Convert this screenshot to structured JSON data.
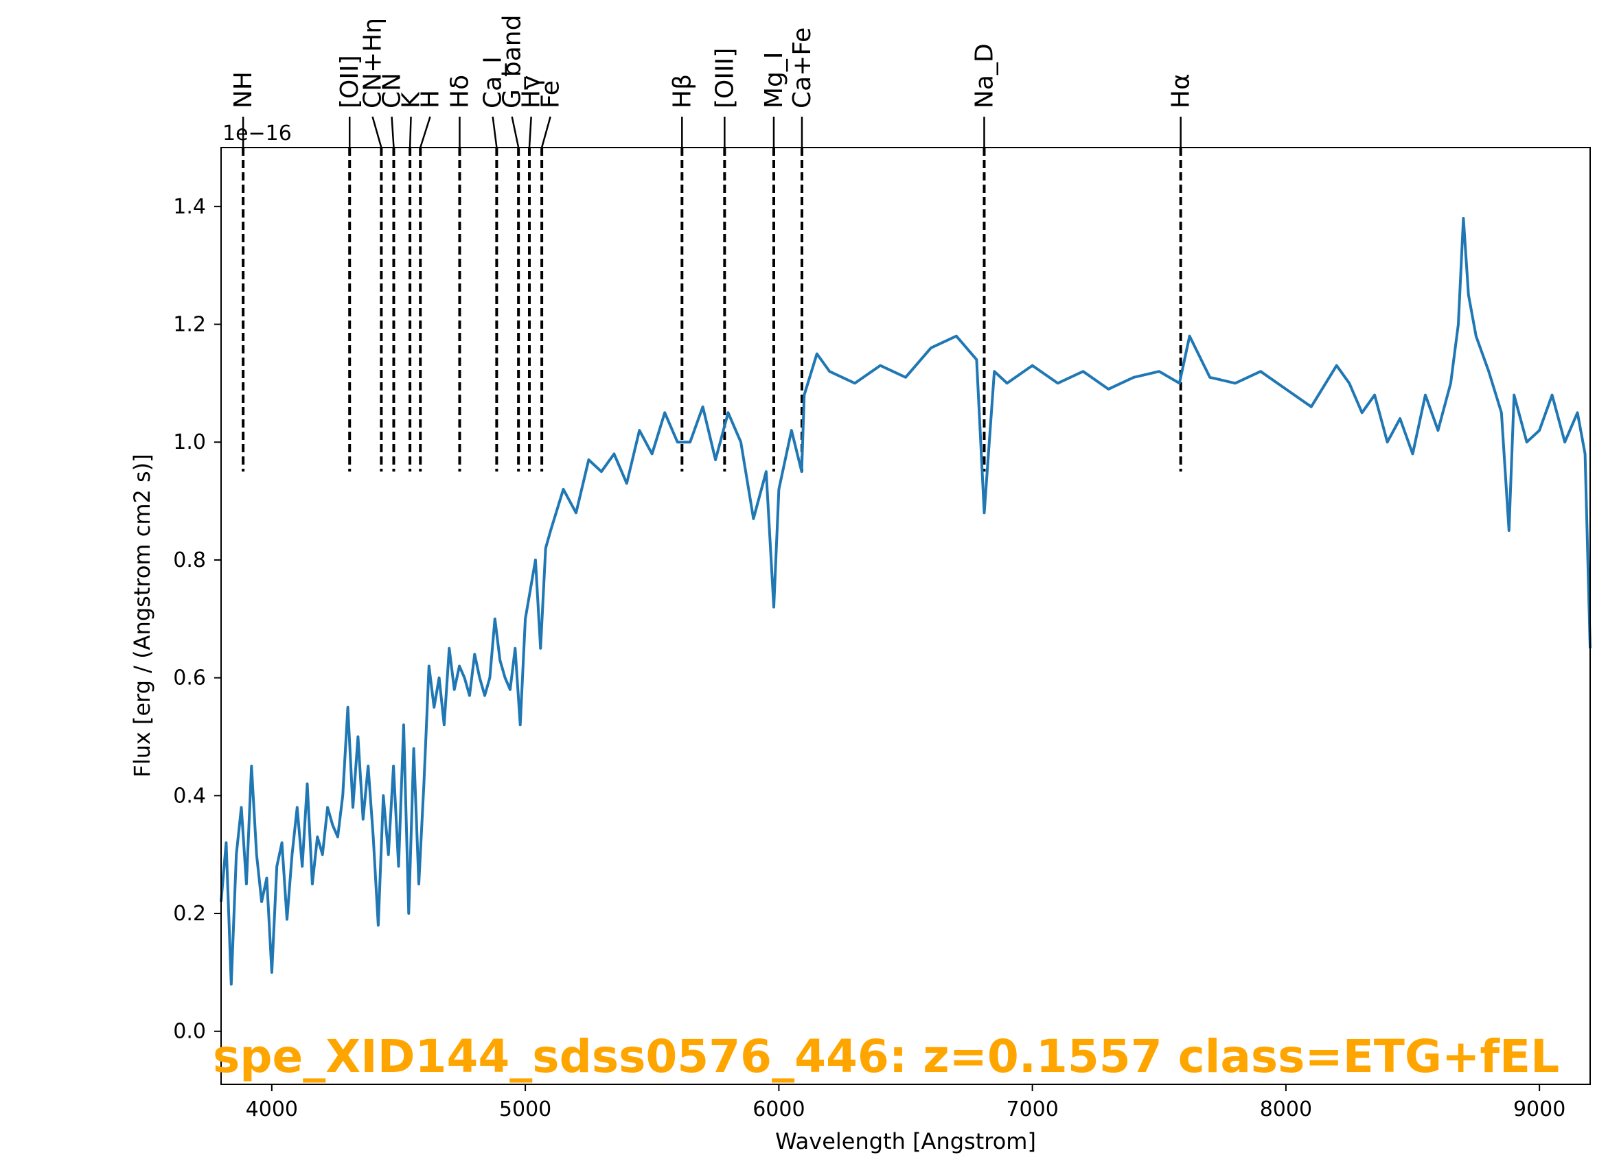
{
  "chart_data": {
    "type": "line",
    "xlabel": "Wavelength [Angstrom]",
    "ylabel": "Flux [erg / (Angstrom cm2 s)]",
    "y_offset_label": "1e−16",
    "xlim": [
      3800,
      9200
    ],
    "ylim": [
      -0.09,
      1.5
    ],
    "x_ticks": [
      4000,
      5000,
      6000,
      7000,
      8000,
      9000
    ],
    "x_tick_labels": [
      "4000",
      "5000",
      "6000",
      "7000",
      "8000",
      "9000"
    ],
    "y_ticks": [
      0.0,
      0.2,
      0.4,
      0.6,
      0.8,
      1.0,
      1.2,
      1.4
    ],
    "y_tick_labels": [
      "0.0",
      "0.2",
      "0.4",
      "0.6",
      "0.8",
      "1.0",
      "1.2",
      "1.4"
    ],
    "grid": false,
    "line_color": "#1f77b4",
    "marker_line_color": "#000000",
    "annotation": {
      "text": "spe_XID144_sdss0576_446: z=0.1557 class=ETG+fEL",
      "color": "#FFA500"
    },
    "spectral_lines": [
      {
        "label": "NH",
        "x": 3887
      },
      {
        "label": "[OII]",
        "x": 4307
      },
      {
        "label": "CN+Hη",
        "x": 4432
      },
      {
        "label": "CN",
        "x": 4481
      },
      {
        "label": "K",
        "x": 4545
      },
      {
        "label": "H",
        "x": 4586
      },
      {
        "label": "Hδ",
        "x": 4741
      },
      {
        "label": "Ca_I",
        "x": 4887
      },
      {
        "label": "G_band",
        "x": 4973
      },
      {
        "label": "Hγ",
        "x": 5016
      },
      {
        "label": "Fe",
        "x": 5065
      },
      {
        "label": "Hβ",
        "x": 5618
      },
      {
        "label": "[OIII]",
        "x": 5786
      },
      {
        "label": "Mg_I",
        "x": 5980
      },
      {
        "label": "Ca+Fe",
        "x": 6091
      },
      {
        "label": "Na_D",
        "x": 6810
      },
      {
        "label": "Hα",
        "x": 7585
      }
    ],
    "series": [
      {
        "x": [
          3800,
          3820,
          3840,
          3860,
          3880,
          3900,
          3920,
          3940,
          3960,
          3980,
          4000,
          4020,
          4040,
          4060,
          4080,
          4100,
          4120,
          4140,
          4160,
          4180,
          4200,
          4220,
          4240,
          4260,
          4280,
          4300,
          4320,
          4340,
          4360,
          4380,
          4400,
          4420,
          4440,
          4460,
          4480,
          4500,
          4520,
          4540,
          4560,
          4580,
          4600,
          4620,
          4640,
          4660,
          4680,
          4700,
          4720,
          4740,
          4760,
          4780,
          4800,
          4820,
          4840,
          4860,
          4880,
          4900,
          4920,
          4940,
          4960,
          4980,
          5000,
          5020,
          5040,
          5060,
          5080,
          5100,
          5150,
          5200,
          5250,
          5300,
          5350,
          5400,
          5450,
          5500,
          5550,
          5600,
          5650,
          5700,
          5750,
          5800,
          5850,
          5900,
          5950,
          5980,
          6000,
          6050,
          6090,
          6100,
          6150,
          6200,
          6300,
          6400,
          6500,
          6600,
          6700,
          6780,
          6810,
          6850,
          6900,
          7000,
          7100,
          7200,
          7300,
          7400,
          7500,
          7580,
          7620,
          7700,
          7800,
          7900,
          8000,
          8100,
          8200,
          8250,
          8300,
          8350,
          8400,
          8450,
          8500,
          8550,
          8600,
          8650,
          8680,
          8700,
          8720,
          8750,
          8800,
          8850,
          8880,
          8900,
          8950,
          9000,
          9050,
          9100,
          9150,
          9180,
          9200
        ],
        "values": [
          0.22,
          0.32,
          0.08,
          0.3,
          0.38,
          0.25,
          0.45,
          0.3,
          0.22,
          0.26,
          0.1,
          0.28,
          0.32,
          0.19,
          0.3,
          0.38,
          0.28,
          0.42,
          0.25,
          0.33,
          0.3,
          0.38,
          0.35,
          0.33,
          0.4,
          0.55,
          0.38,
          0.5,
          0.36,
          0.45,
          0.33,
          0.18,
          0.4,
          0.3,
          0.45,
          0.28,
          0.52,
          0.2,
          0.48,
          0.25,
          0.42,
          0.62,
          0.55,
          0.6,
          0.52,
          0.65,
          0.58,
          0.62,
          0.6,
          0.57,
          0.64,
          0.6,
          0.57,
          0.6,
          0.7,
          0.63,
          0.6,
          0.58,
          0.65,
          0.52,
          0.7,
          0.75,
          0.8,
          0.65,
          0.82,
          0.85,
          0.92,
          0.88,
          0.97,
          0.95,
          0.98,
          0.93,
          1.02,
          0.98,
          1.05,
          1.0,
          1.0,
          1.06,
          0.97,
          1.05,
          1.0,
          0.87,
          0.95,
          0.72,
          0.92,
          1.02,
          0.95,
          1.08,
          1.15,
          1.12,
          1.1,
          1.13,
          1.11,
          1.16,
          1.18,
          1.14,
          0.88,
          1.12,
          1.1,
          1.13,
          1.1,
          1.12,
          1.09,
          1.11,
          1.12,
          1.1,
          1.18,
          1.11,
          1.1,
          1.12,
          1.09,
          1.06,
          1.13,
          1.1,
          1.05,
          1.08,
          1.0,
          1.04,
          0.98,
          1.08,
          1.02,
          1.1,
          1.2,
          1.38,
          1.25,
          1.18,
          1.12,
          1.05,
          0.85,
          1.08,
          1.0,
          1.02,
          1.08,
          1.0,
          1.05,
          0.98,
          0.65
        ]
      }
    ]
  }
}
